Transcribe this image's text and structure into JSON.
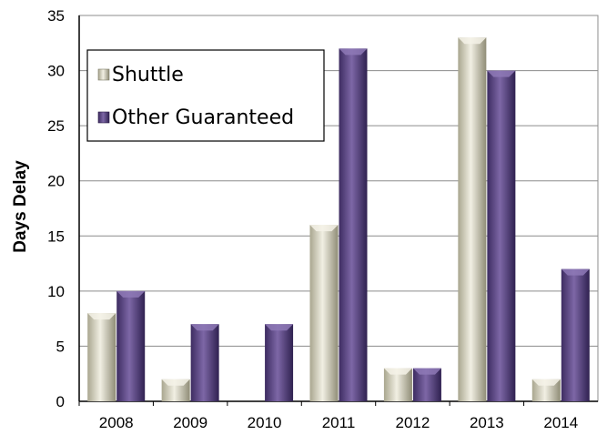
{
  "chart_data": {
    "type": "bar",
    "title": "",
    "xlabel": "",
    "ylabel": "Days Delay",
    "categories": [
      "2008",
      "2009",
      "2010",
      "2011",
      "2012",
      "2013",
      "2014"
    ],
    "series": [
      {
        "name": "Shuttle",
        "values": [
          8,
          2,
          0,
          16,
          3,
          33,
          2
        ],
        "color": "#d8d6c4"
      },
      {
        "name": "Other Guaranteed",
        "values": [
          10,
          7,
          7,
          32,
          3,
          30,
          12
        ],
        "color": "#5e4a86"
      }
    ],
    "ylim": [
      0,
      35
    ],
    "yticks": [
      0,
      5,
      10,
      15,
      20,
      25,
      30,
      35
    ],
    "grid": true,
    "legend_position": "top-left"
  }
}
